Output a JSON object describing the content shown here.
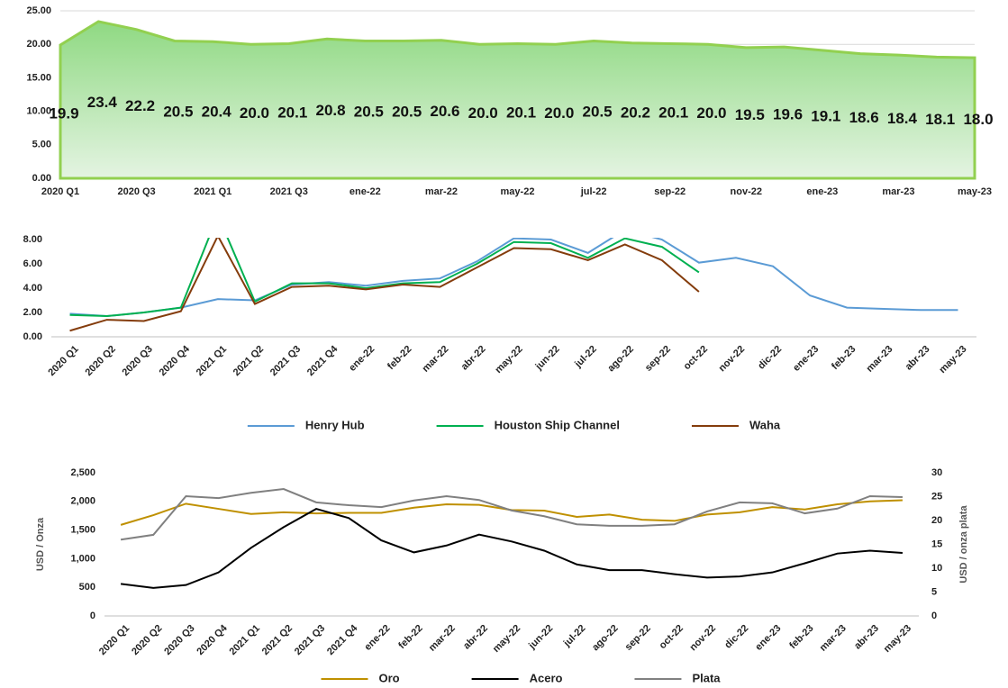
{
  "chart_data": [
    {
      "type": "area",
      "color": "#92d050",
      "grid": true,
      "categories": [
        "2020 Q1",
        null,
        "2020 Q3",
        null,
        "2021 Q1",
        null,
        "2021 Q3",
        null,
        "ene-22",
        null,
        "mar-22",
        null,
        "may-22",
        null,
        "jul-22",
        null,
        "sep-22",
        null,
        "nov-22",
        null,
        "ene-23",
        null,
        "mar-23",
        null,
        "may-23"
      ],
      "values": [
        19.9,
        23.4,
        22.2,
        20.5,
        20.4,
        20.0,
        20.1,
        20.8,
        20.5,
        20.5,
        20.6,
        20.0,
        20.1,
        20.0,
        20.5,
        20.2,
        20.1,
        20.0,
        19.5,
        19.6,
        19.1,
        18.6,
        18.4,
        18.1,
        18.0
      ],
      "value_labels": [
        "19.9",
        "23.4",
        "22.2",
        "20.5",
        "20.4",
        "20.0",
        "20.1",
        "20.8",
        "20.5",
        "20.5",
        "20.6",
        "20.0",
        "20.1",
        "20.0",
        "20.5",
        "20.2",
        "20.1",
        "20.0",
        "19.5",
        "19.6",
        "19.1",
        "18.6",
        "18.4",
        "18.1",
        "18.0"
      ],
      "ylim": [
        0,
        25
      ],
      "yticks": [
        {
          "value": 0,
          "label": "0.00"
        },
        {
          "value": 5,
          "label": "5.00"
        },
        {
          "value": 10,
          "label": "10.00"
        },
        {
          "value": 15,
          "label": "15.00"
        },
        {
          "value": 20,
          "label": "20.00"
        },
        {
          "value": 25,
          "label": "25.00"
        }
      ]
    },
    {
      "type": "line",
      "grid": false,
      "legend": "bottom",
      "categories": [
        "2020 Q1",
        "2020 Q2",
        "2020 Q3",
        "2020 Q4",
        "2021 Q1",
        "2021 Q2",
        "2021 Q3",
        "2021 Q4",
        "ene-22",
        "feb-22",
        "mar-22",
        "abr-22",
        "may-22",
        "jun-22",
        "jul-22",
        "ago-22",
        "sep-22",
        "oct-22",
        "nov-22",
        "dic-22",
        "ene-23",
        "feb-23",
        "mar-23",
        "abr-23",
        "may-23"
      ],
      "ylim": [
        0,
        8
      ],
      "yticks": [
        {
          "value": 0,
          "label": "0.00"
        },
        {
          "value": 2,
          "label": "2.00"
        },
        {
          "value": 4,
          "label": "4.00"
        },
        {
          "value": 6,
          "label": "6.00"
        },
        {
          "value": 8,
          "label": "8.00"
        }
      ],
      "series": [
        {
          "name": "Henry Hub",
          "color": "#5b9bd5",
          "values": [
            1.9,
            1.7,
            2.0,
            2.4,
            3.1,
            3.0,
            4.3,
            4.5,
            4.2,
            4.6,
            4.8,
            6.2,
            8.1,
            8.0,
            6.9,
            8.8,
            8.0,
            6.1,
            6.5,
            5.8,
            3.4,
            2.4,
            2.3,
            2.2,
            2.2
          ]
        },
        {
          "name": "Houston Ship Channel",
          "color": "#00b050",
          "values": [
            1.8,
            1.7,
            2.0,
            2.4,
            10.0,
            2.9,
            4.4,
            4.4,
            4.0,
            4.4,
            4.5,
            6.0,
            7.8,
            7.7,
            6.5,
            8.1,
            7.4,
            5.3,
            null,
            null,
            null,
            null,
            null,
            null,
            null
          ]
        },
        {
          "name": "Waha",
          "color": "#843c0c",
          "values": [
            0.5,
            1.4,
            1.3,
            2.1,
            8.3,
            2.7,
            4.1,
            4.2,
            3.9,
            4.3,
            4.1,
            5.7,
            7.3,
            7.2,
            6.3,
            7.6,
            6.3,
            3.7,
            null,
            null,
            null,
            null,
            null,
            null,
            null
          ]
        }
      ]
    },
    {
      "type": "line",
      "grid": false,
      "legend": "bottom",
      "ylabel": "USD / Onza",
      "y2label": "USD / onza plata",
      "categories": [
        "2020 Q1",
        "2020 Q2",
        "2020 Q3",
        "2020 Q4",
        "2021 Q1",
        "2021 Q2",
        "2021 Q3",
        "2021 Q4",
        "ene-22",
        "feb-22",
        "mar-22",
        "abr-22",
        "may-22",
        "jun-22",
        "jul-22",
        "ago-22",
        "sep-22",
        "oct-22",
        "nov-22",
        "dic-22",
        "ene-23",
        "feb-23",
        "mar-23",
        "abr-23",
        "may-23"
      ],
      "ylim": [
        0,
        2500
      ],
      "yticks": [
        0,
        500,
        {
          "value": 1000,
          "label": "1,000"
        },
        {
          "value": 1500,
          "label": "1,500"
        },
        {
          "value": 2000,
          "label": "2,000"
        },
        {
          "value": 2500,
          "label": "2,500"
        }
      ],
      "y2lim": [
        0,
        30
      ],
      "y2ticks": [
        0,
        5,
        10,
        15,
        20,
        25,
        30
      ],
      "series": [
        {
          "name": "Oro",
          "color": "#bf9000",
          "values": [
            1590,
            1760,
            1960,
            1870,
            1780,
            1810,
            1790,
            1800,
            1800,
            1890,
            1950,
            1940,
            1850,
            1840,
            1730,
            1770,
            1680,
            1660,
            1770,
            1810,
            1900,
            1860,
            1950,
            2000,
            2020
          ]
        },
        {
          "name": "Acero",
          "color": "#000000",
          "values": [
            560,
            490,
            540,
            760,
            1190,
            1550,
            1870,
            1710,
            1320,
            1110,
            1230,
            1420,
            1300,
            1140,
            900,
            800,
            800,
            730,
            670,
            690,
            760,
            920,
            1090,
            1140,
            1100
          ]
        },
        {
          "name": "Plata",
          "color": "#808080",
          "axis": "y2",
          "values": [
            16.0,
            17.0,
            25.1,
            24.7,
            25.8,
            26.6,
            23.8,
            23.2,
            22.8,
            24.2,
            25.1,
            24.3,
            22.1,
            20.9,
            19.2,
            18.9,
            18.9,
            19.2,
            21.9,
            23.8,
            23.6,
            21.5,
            22.5,
            25.1,
            24.9
          ]
        }
      ]
    }
  ]
}
